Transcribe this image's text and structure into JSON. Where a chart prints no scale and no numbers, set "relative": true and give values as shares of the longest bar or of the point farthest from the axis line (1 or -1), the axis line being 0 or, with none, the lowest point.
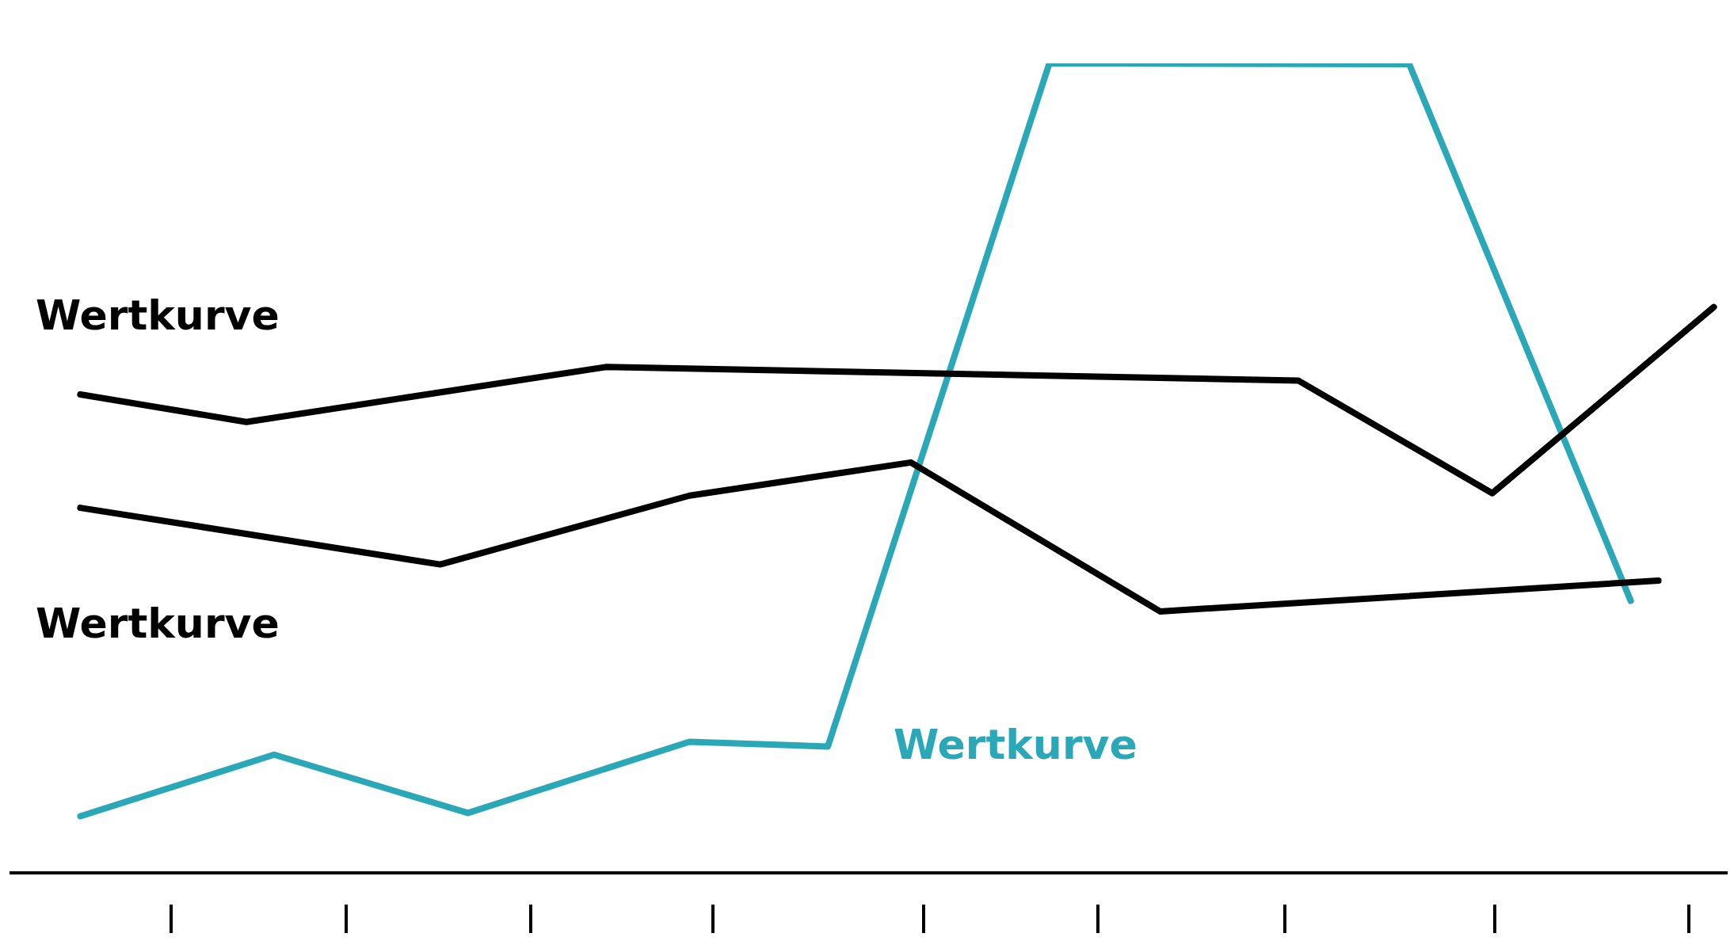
{
  "chart_data": {
    "type": "line",
    "relative": true,
    "categories": [
      null,
      null,
      null,
      null,
      null,
      null,
      null,
      null,
      null,
      null,
      null,
      null,
      null,
      null,
      null,
      null,
      null,
      null,
      null,
      null,
      null,
      null,
      null,
      null,
      null,
      null,
      null,
      null,
      null,
      null,
      null,
      null,
      null,
      null,
      null,
      null,
      null,
      null,
      null,
      null,
      null,
      null,
      null,
      null,
      null,
      null,
      null,
      null,
      null,
      null,
      null,
      null,
      null,
      null,
      null,
      null,
      null,
      null,
      null,
      null,
      null,
      null
    ],
    "grid": false,
    "legend": false,
    "marker": "none",
    "line_style": "solid",
    "series": [
      {
        "name": "Wertkurve",
        "color": "#000000",
        "values": [
          null,
          null,
          0.591,
          null,
          null,
          null,
          null,
          null,
          0.557,
          null,
          null,
          null,
          null,
          null,
          null,
          null,
          null,
          null,
          null,
          null,
          null,
          0.625,
          null,
          null,
          null,
          null,
          null,
          null,
          null,
          null,
          null,
          null,
          null,
          null,
          null,
          null,
          null,
          null,
          null,
          null,
          null,
          null,
          null,
          null,
          null,
          null,
          0.608,
          null,
          null,
          null,
          null,
          null,
          null,
          0.469,
          null,
          null,
          null,
          null,
          null,
          null,
          null,
          0.699
        ]
      },
      {
        "name": "Wertkurve",
        "color": "#000000",
        "values": [
          null,
          null,
          0.451,
          null,
          null,
          null,
          null,
          null,
          null,
          null,
          null,
          null,
          null,
          null,
          null,
          0.381,
          null,
          null,
          null,
          null,
          null,
          null,
          null,
          null,
          0.466,
          null,
          null,
          null,
          null,
          null,
          null,
          null,
          0.507,
          null,
          null,
          null,
          null,
          null,
          null,
          null,
          null,
          0.323,
          null,
          null,
          null,
          null,
          null,
          null,
          null,
          null,
          null,
          null,
          null,
          null,
          null,
          null,
          null,
          null,
          null,
          0.361,
          null,
          null
        ]
      },
      {
        "name": "Wertkurve",
        "color": "#2aa8b8",
        "values": [
          null,
          null,
          0.07,
          null,
          null,
          null,
          null,
          null,
          null,
          0.146,
          null,
          null,
          null,
          null,
          null,
          null,
          0.074,
          null,
          null,
          null,
          null,
          null,
          null,
          null,
          0.162,
          null,
          null,
          null,
          null,
          0.156,
          null,
          null,
          null,
          null,
          null,
          null,
          null,
          1,
          null,
          null,
          null,
          null,
          null,
          null,
          null,
          null,
          null,
          null,
          null,
          null,
          0.999,
          null,
          null,
          null,
          null,
          null,
          null,
          null,
          0.336,
          null,
          null,
          null
        ]
      }
    ]
  }
}
